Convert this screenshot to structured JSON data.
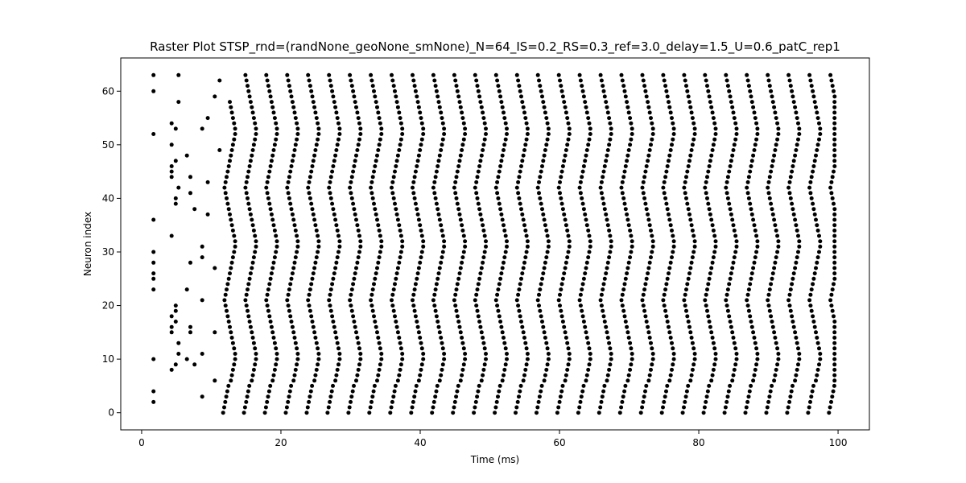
{
  "chart_data": {
    "type": "scatter",
    "title": "Raster Plot STSP_rnd=(randNone_geoNone_smNone)_N=64_IS=0.2_RS=0.3_ref=3.0_delay=1.5_U=0.6_patC_rep1",
    "xlabel": "Time (ms)",
    "ylabel": "Neuron index",
    "xlim": [
      -3,
      104.5
    ],
    "ylim": [
      -3.2,
      66.2
    ],
    "xticks": [
      0,
      20,
      40,
      60,
      80,
      100
    ],
    "yticks": [
      0,
      10,
      20,
      30,
      40,
      50,
      60
    ],
    "grid": false,
    "marker_color": "#000000",
    "period_ms": 3.0,
    "first_full_volley_ms": 12.5,
    "last_volley_ms": 99.5,
    "early_spikes": [
      {
        "x": 1.7,
        "y": [
          2,
          4,
          10,
          23,
          25,
          26,
          28,
          30,
          36,
          52,
          60,
          63
        ]
      },
      {
        "x": 4.3,
        "y": [
          8,
          15,
          16,
          18,
          33,
          44,
          45,
          46,
          50,
          54
        ]
      },
      {
        "x": 4.9,
        "y": [
          9,
          17,
          19,
          20,
          39,
          40,
          47,
          53
        ]
      },
      {
        "x": 5.3,
        "y": [
          11,
          13,
          42,
          58,
          63
        ]
      },
      {
        "x": 6.5,
        "y": [
          10,
          23,
          48
        ]
      },
      {
        "x": 7.0,
        "y": [
          15,
          16,
          28,
          41,
          44
        ]
      },
      {
        "x": 7.6,
        "y": [
          9,
          38
        ]
      },
      {
        "x": 8.7,
        "y": [
          3,
          11,
          21,
          29,
          31,
          53
        ]
      },
      {
        "x": 9.5,
        "y": [
          37,
          43,
          55
        ]
      }
    ]
  }
}
